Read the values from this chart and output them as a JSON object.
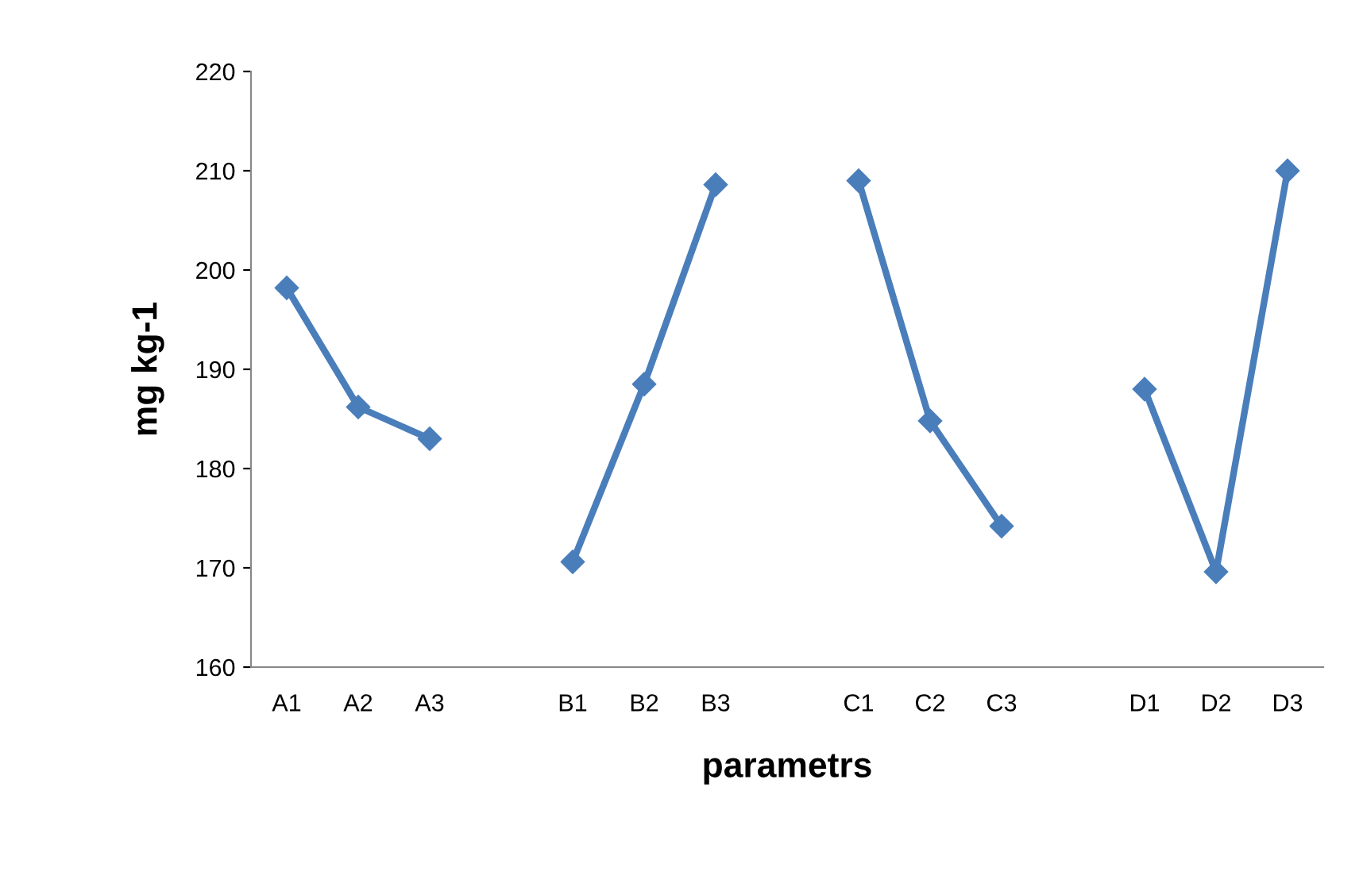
{
  "chart_data": {
    "type": "line",
    "xlabel": "parametrs",
    "ylabel": "mg kg-1",
    "categories": [
      "A1",
      "A2",
      "A3",
      null,
      "B1",
      "B2",
      "B3",
      null,
      "C1",
      "C2",
      "C3",
      null,
      "D1",
      "D2",
      "D3"
    ],
    "series": [
      {
        "color": "#4a7ebb",
        "values": [
          198.2,
          186.2,
          183,
          null,
          170.6,
          188.5,
          208.6,
          null,
          209,
          184.8,
          174.2,
          null,
          188,
          169.6,
          210
        ]
      }
    ],
    "ylim": [
      160,
      220
    ],
    "yticks": [
      160,
      170,
      180,
      190,
      200,
      210,
      220
    ],
    "grid": false,
    "legend": false,
    "marker": "diamond",
    "line_style": "solid"
  }
}
